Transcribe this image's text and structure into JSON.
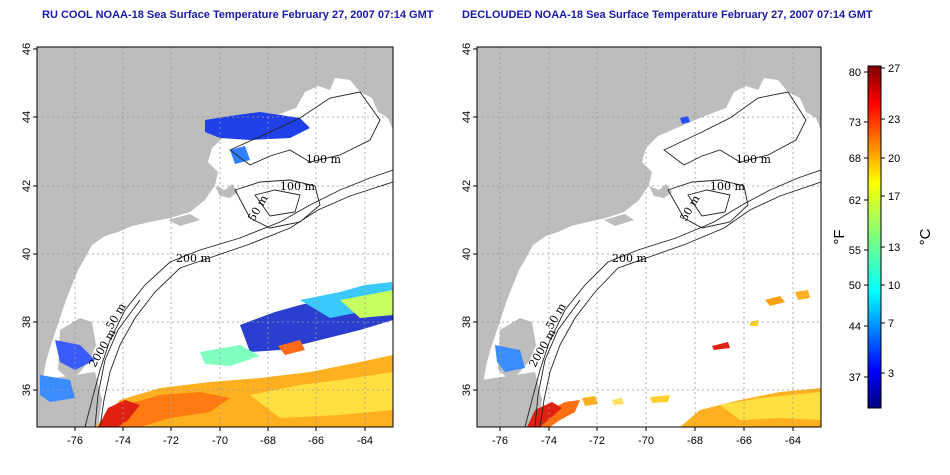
{
  "panels": [
    {
      "title": "RU COOL NOAA-18 Sea Surface Temperature February 27, 2007 07:14 GMT",
      "contour_labels": [
        "100 m",
        "100 m",
        "50 m",
        "200 m",
        "50 m",
        "2000 m"
      ]
    },
    {
      "title": "DECLOUDED NOAA-18 Sea Surface Temperature February 27, 2007 07:14 GMT",
      "contour_labels": [
        "100 m",
        "100 m",
        "50 m",
        "200 m",
        "50 m",
        "2000 m"
      ]
    }
  ],
  "axes": {
    "x_ticks": [
      "-76",
      "-74",
      "-72",
      "-70",
      "-68",
      "-66",
      "-64"
    ],
    "y_ticks": [
      "36",
      "38",
      "40",
      "42",
      "44",
      "46"
    ],
    "x_range": [
      -77,
      -63
    ],
    "y_range": [
      35,
      46
    ],
    "grid": true
  },
  "colorbar": {
    "fahrenheit_unit": "°F",
    "celsius_unit": "°C",
    "fahrenheit_ticks": [
      "37",
      "44",
      "50",
      "55",
      "62",
      "68",
      "73",
      "80"
    ],
    "celsius_ticks": [
      "3",
      "7",
      "10",
      "13",
      "17",
      "20",
      "23",
      "27"
    ],
    "colors": [
      "#00007f",
      "#0000ff",
      "#007fff",
      "#00ffff",
      "#7fff7f",
      "#ffff00",
      "#ff7f00",
      "#ff0000",
      "#7f0000"
    ]
  },
  "colors": {
    "land": "#bdbdbd",
    "ocean": "#ffffff",
    "grid": "#9a9a9a",
    "title": "#1a1aa8"
  }
}
